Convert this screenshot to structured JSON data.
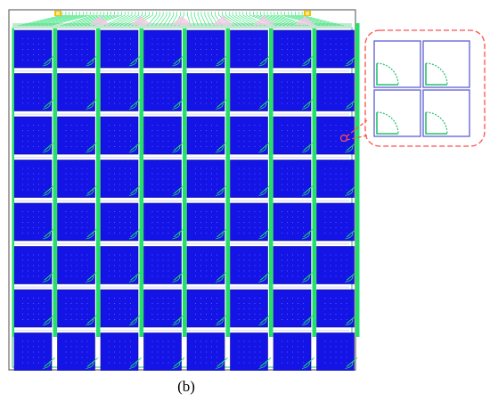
{
  "caption": "(b)",
  "layout": {
    "grid_rows": 8,
    "grid_cols": 8,
    "inset_rows": 2,
    "inset_cols": 2
  },
  "colors": {
    "pixel_fill": "#1414e6",
    "pixel_outline": "#0a0a99",
    "trace": "#22e06a",
    "background": "#ffffff",
    "frame": "#6b6b6b",
    "callout": "#ff4d4d",
    "pad": "#f2c200",
    "inset_outline": "#6a6ad8",
    "inset_arc": "#22c26a"
  }
}
